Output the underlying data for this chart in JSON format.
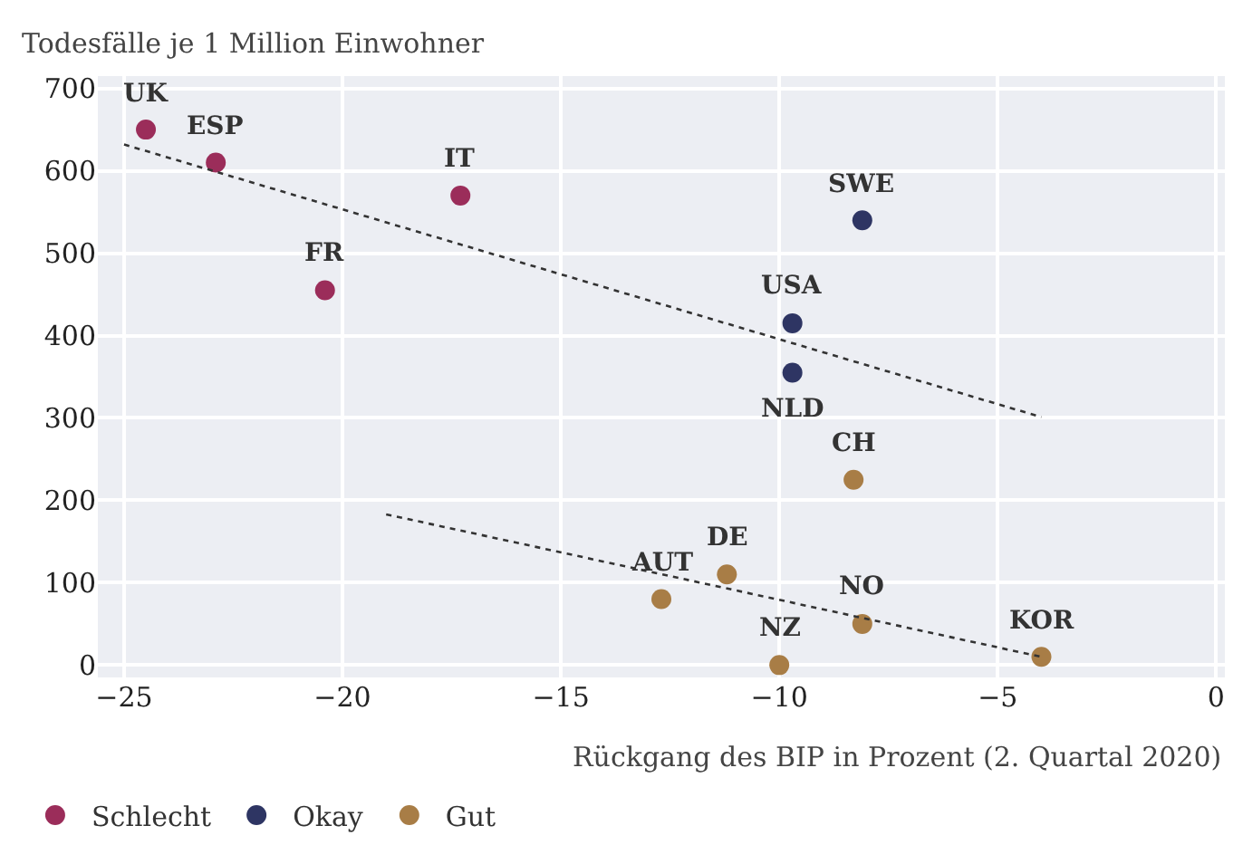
{
  "chart_data": {
    "type": "scatter",
    "ylabel": "Todesfälle je 1 Million Einwohner",
    "xlabel": "Rückgang des BIP in Prozent (2. Quartal 2020)",
    "xlim": [
      -25.6,
      0.2
    ],
    "ylim": [
      -15,
      715
    ],
    "xticks": [
      -25,
      -20,
      -15,
      -10,
      -5,
      0
    ],
    "yticks": [
      0,
      100,
      200,
      300,
      400,
      500,
      600,
      700
    ],
    "grid": true,
    "legend": "bottom left",
    "marker": "circle",
    "series": [
      {
        "name": "Schlecht",
        "color": "#9b2d5a",
        "x": [
          -24.5,
          -22.9,
          -17.3,
          -20.4
        ],
        "values": [
          650,
          610,
          570,
          455
        ]
      },
      {
        "name": "Okay",
        "color": "#2e3563",
        "x": [
          -8.1,
          -9.7,
          -9.7
        ],
        "values": [
          540,
          415,
          355
        ]
      },
      {
        "name": "Gut",
        "color": "#a87d46",
        "x": [
          -8.3,
          -11.2,
          -12.7,
          -8.1,
          -10.0,
          -4.0
        ],
        "values": [
          225,
          110,
          80,
          50,
          0,
          10
        ]
      },
      {
        "type": "line",
        "marker": "none",
        "line_style": "dotted",
        "color": "#333333",
        "x": [
          -25,
          -4.0
        ],
        "values": [
          632,
          301
        ]
      },
      {
        "type": "line",
        "marker": "none",
        "line_style": "dotted",
        "color": "#333333",
        "x": [
          -19.0,
          -4.0
        ],
        "values": [
          183,
          10
        ]
      }
    ],
    "annotations": [
      {
        "text": "UK",
        "x": -24.5,
        "y": 650
      },
      {
        "text": "ESP",
        "x": -22.9,
        "y": 610
      },
      {
        "text": "IT",
        "x": -17.3,
        "y": 570
      },
      {
        "text": "FR",
        "x": -20.4,
        "y": 455
      },
      {
        "text": "SWE",
        "x": -8.1,
        "y": 540
      },
      {
        "text": "USA",
        "x": -9.7,
        "y": 415
      },
      {
        "text": "NLD",
        "x": -9.7,
        "y": 355
      },
      {
        "text": "CH",
        "x": -8.3,
        "y": 225
      },
      {
        "text": "DE",
        "x": -11.2,
        "y": 110
      },
      {
        "text": "AUT",
        "x": -12.7,
        "y": 80
      },
      {
        "text": "NO",
        "x": -8.1,
        "y": 50
      },
      {
        "text": "NZ",
        "x": -10.0,
        "y": 0
      },
      {
        "text": "KOR",
        "x": -4.0,
        "y": 10
      }
    ]
  }
}
